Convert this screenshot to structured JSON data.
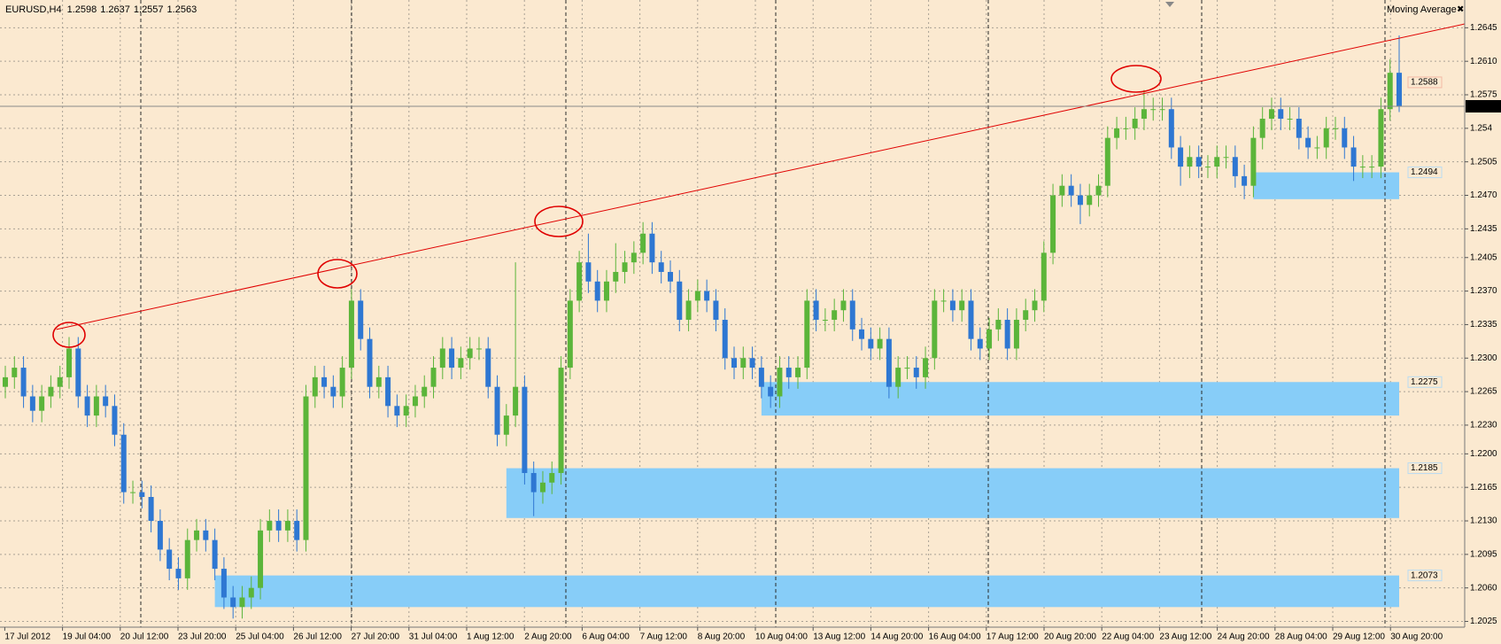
{
  "chart_data": {
    "type": "candlestick",
    "title": "EURUSD,H4",
    "indicator": "Moving Average",
    "x_labels": [
      "17 Jul 2012",
      "19 Jul 04:00",
      "20 Jul 12:00",
      "23 Jul 20:00",
      "25 Jul 04:00",
      "26 Jul 12:00",
      "27 Jul 20:00",
      "31 Jul 04:00",
      "1 Aug 12:00",
      "2 Aug 20:00",
      "6 Aug 04:00",
      "7 Aug 12:00",
      "8 Aug 20:00",
      "10 Aug 04:00",
      "13 Aug 12:00",
      "14 Aug 20:00",
      "16 Aug 04:00",
      "17 Aug 12:00",
      "20 Aug 20:00",
      "22 Aug 04:00",
      "23 Aug 12:00",
      "24 Aug 20:00",
      "28 Aug 04:00",
      "29 Aug 12:00",
      "30 Aug 20:00"
    ],
    "open": [
      1.227,
      1.228,
      1.229,
      1.226,
      1.2245,
      1.226,
      1.227,
      1.228,
      1.231,
      1.226,
      1.224,
      1.226,
      1.225,
      1.222,
      1.216,
      1.216,
      1.2155,
      1.213,
      1.21,
      1.208,
      1.207,
      1.211,
      1.212,
      1.211,
      1.208,
      1.205,
      1.204,
      1.205,
      1.206,
      1.212,
      1.213,
      1.212,
      1.213,
      1.211,
      1.226,
      1.228,
      1.227,
      1.226,
      1.229,
      1.236,
      1.232,
      1.227,
      1.228,
      1.225,
      1.224,
      1.225,
      1.226,
      1.227,
      1.229,
      1.231,
      1.229,
      1.23,
      1.231,
      1.231,
      1.227,
      1.222,
      1.224,
      1.227,
      1.218,
      1.216,
      1.217,
      1.218,
      1.229,
      1.236,
      1.24,
      1.238,
      1.236,
      1.238,
      1.239,
      1.24,
      1.241,
      1.243,
      1.24,
      1.239,
      1.238,
      1.234,
      1.236,
      1.237,
      1.236,
      1.234,
      1.23,
      1.229,
      1.23,
      1.229,
      1.227,
      1.226,
      1.229,
      1.228,
      1.229,
      1.236,
      1.234,
      1.234,
      1.235,
      1.236,
      1.233,
      1.232,
      1.231,
      1.232,
      1.227,
      1.229,
      1.229,
      1.228,
      1.23,
      1.236,
      1.236,
      1.235,
      1.236,
      1.232,
      1.231,
      1.233,
      1.234,
      1.231,
      1.234,
      1.235,
      1.236,
      1.241,
      1.247,
      1.248,
      1.247,
      1.246,
      1.247,
      1.248,
      1.253,
      1.254,
      1.254,
      1.255,
      1.256,
      1.256,
      1.256,
      1.252,
      1.25,
      1.251,
      1.25,
      1.25,
      1.251,
      1.251,
      1.249,
      1.248,
      1.253,
      1.255,
      1.256,
      1.255,
      1.255,
      1.253,
      1.252,
      1.252,
      1.254,
      1.254,
      1.252,
      1.25,
      1.25,
      1.25,
      1.256,
      1.2598
    ],
    "high": [
      1.2292,
      1.2302,
      1.2302,
      1.2272,
      1.2272,
      1.2282,
      1.2292,
      1.2322,
      1.2322,
      1.2272,
      1.2272,
      1.2272,
      1.2262,
      1.2232,
      1.2172,
      1.2172,
      1.2167,
      1.2142,
      1.2112,
      1.2092,
      1.2122,
      1.2132,
      1.2132,
      1.2122,
      1.2092,
      1.2062,
      1.2062,
      1.2072,
      1.2132,
      1.2142,
      1.2142,
      1.2142,
      1.2142,
      1.2272,
      1.2292,
      1.2292,
      1.2282,
      1.2302,
      1.2372,
      1.2372,
      1.2332,
      1.2292,
      1.2292,
      1.2262,
      1.2262,
      1.2272,
      1.2282,
      1.2302,
      1.2322,
      1.2322,
      1.2312,
      1.2322,
      1.2322,
      1.2322,
      1.2282,
      1.2252,
      1.24,
      1.2282,
      1.2192,
      1.2182,
      1.2192,
      1.2302,
      1.2372,
      1.2412,
      1.243,
      1.2392,
      1.2392,
      1.242,
      1.2412,
      1.2422,
      1.2442,
      1.2442,
      1.2412,
      1.2402,
      1.2392,
      1.2372,
      1.2382,
      1.2382,
      1.2372,
      1.2352,
      1.2312,
      1.2312,
      1.2312,
      1.2302,
      1.2282,
      1.2302,
      1.2302,
      1.2302,
      1.2372,
      1.2372,
      1.2352,
      1.2362,
      1.2372,
      1.2372,
      1.2342,
      1.2332,
      1.2332,
      1.2332,
      1.2302,
      1.2302,
      1.2302,
      1.2312,
      1.2372,
      1.2372,
      1.2372,
      1.2372,
      1.2372,
      1.2332,
      1.2342,
      1.2352,
      1.2352,
      1.2352,
      1.2362,
      1.2372,
      1.2422,
      1.2482,
      1.2492,
      1.2492,
      1.2482,
      1.2482,
      1.2492,
      1.2542,
      1.2552,
      1.2552,
      1.2562,
      1.258,
      1.2572,
      1.2572,
      1.2572,
      1.2532,
      1.2522,
      1.2522,
      1.2512,
      1.2522,
      1.2522,
      1.2522,
      1.2502,
      1.2542,
      1.2562,
      1.2572,
      1.2572,
      1.2562,
      1.2562,
      1.2542,
      1.2532,
      1.2552,
      1.2552,
      1.2552,
      1.2532,
      1.2512,
      1.2512,
      1.2572,
      1.2612,
      1.2637
    ],
    "low": [
      1.2258,
      1.2268,
      1.2248,
      1.2233,
      1.2233,
      1.2248,
      1.2258,
      1.2268,
      1.2248,
      1.2228,
      1.2228,
      1.2238,
      1.2208,
      1.2148,
      1.2148,
      1.2143,
      1.2118,
      1.2088,
      1.2068,
      1.2058,
      1.2058,
      1.2098,
      1.2098,
      1.2068,
      1.2038,
      1.2028,
      1.2028,
      1.2038,
      1.2048,
      1.2108,
      1.2108,
      1.2108,
      1.2098,
      1.2098,
      1.2248,
      1.2258,
      1.2248,
      1.2248,
      1.2278,
      1.2308,
      1.2258,
      1.2258,
      1.2238,
      1.2228,
      1.2228,
      1.2238,
      1.2248,
      1.2258,
      1.2278,
      1.2278,
      1.2278,
      1.2288,
      1.2298,
      1.2258,
      1.2208,
      1.2208,
      1.2228,
      1.2168,
      1.2135,
      1.2148,
      1.2158,
      1.2168,
      1.2278,
      1.2348,
      1.2368,
      1.2348,
      1.2348,
      1.2368,
      1.2378,
      1.2388,
      1.2398,
      1.2388,
      1.2378,
      1.2368,
      1.2328,
      1.2328,
      1.2348,
      1.2348,
      1.2328,
      1.2288,
      1.2278,
      1.2278,
      1.2278,
      1.2258,
      1.2248,
      1.2248,
      1.2268,
      1.2268,
      1.2278,
      1.2328,
      1.2328,
      1.2328,
      1.2338,
      1.2318,
      1.2308,
      1.2298,
      1.2298,
      1.2258,
      1.2258,
      1.2278,
      1.2268,
      1.2268,
      1.2288,
      1.2348,
      1.2338,
      1.2338,
      1.2308,
      1.2298,
      1.2298,
      1.2318,
      1.2298,
      1.2298,
      1.2328,
      1.2338,
      1.2348,
      1.2398,
      1.2458,
      1.2458,
      1.244,
      1.2448,
      1.2458,
      1.2468,
      1.2518,
      1.2528,
      1.2528,
      1.2538,
      1.2548,
      1.2548,
      1.2508,
      1.248,
      1.2488,
      1.2488,
      1.2488,
      1.2488,
      1.2498,
      1.2478,
      1.2466,
      1.2468,
      1.2518,
      1.2538,
      1.2538,
      1.2538,
      1.2518,
      1.2508,
      1.2508,
      1.2508,
      1.2528,
      1.2508,
      1.2485,
      1.2488,
      1.2488,
      1.2488,
      1.2548,
      1.2557
    ],
    "close": [
      1.228,
      1.229,
      1.226,
      1.2245,
      1.226,
      1.227,
      1.228,
      1.231,
      1.226,
      1.224,
      1.226,
      1.225,
      1.222,
      1.216,
      1.216,
      1.2155,
      1.213,
      1.21,
      1.208,
      1.207,
      1.211,
      1.212,
      1.211,
      1.208,
      1.205,
      1.204,
      1.205,
      1.206,
      1.212,
      1.213,
      1.212,
      1.213,
      1.211,
      1.226,
      1.228,
      1.227,
      1.226,
      1.229,
      1.236,
      1.232,
      1.227,
      1.228,
      1.225,
      1.224,
      1.225,
      1.226,
      1.227,
      1.229,
      1.231,
      1.229,
      1.23,
      1.231,
      1.231,
      1.227,
      1.222,
      1.224,
      1.227,
      1.218,
      1.216,
      1.217,
      1.218,
      1.229,
      1.236,
      1.24,
      1.238,
      1.236,
      1.238,
      1.239,
      1.24,
      1.241,
      1.243,
      1.24,
      1.239,
      1.238,
      1.234,
      1.236,
      1.237,
      1.236,
      1.234,
      1.23,
      1.229,
      1.23,
      1.229,
      1.227,
      1.226,
      1.229,
      1.228,
      1.229,
      1.236,
      1.234,
      1.234,
      1.235,
      1.236,
      1.233,
      1.232,
      1.231,
      1.232,
      1.227,
      1.229,
      1.229,
      1.228,
      1.23,
      1.236,
      1.236,
      1.235,
      1.236,
      1.232,
      1.231,
      1.233,
      1.234,
      1.231,
      1.234,
      1.235,
      1.236,
      1.241,
      1.247,
      1.248,
      1.247,
      1.246,
      1.247,
      1.248,
      1.253,
      1.254,
      1.254,
      1.255,
      1.256,
      1.256,
      1.256,
      1.252,
      1.25,
      1.251,
      1.25,
      1.25,
      1.251,
      1.251,
      1.249,
      1.248,
      1.253,
      1.255,
      1.256,
      1.255,
      1.255,
      1.253,
      1.252,
      1.252,
      1.254,
      1.254,
      1.252,
      1.25,
      1.25,
      1.25,
      1.256,
      1.2598,
      1.2563
    ],
    "colors": {
      "up": "#5bb53a",
      "down": "#2e77d2",
      "zone": "#87cdf8",
      "trendline": "#e00000"
    },
    "ylim": [
      1.2019,
      1.2674
    ],
    "yticks": [
      1.2645,
      {
        "value": 1.261,
        "label": "1.2610"
      },
      1.2575,
      1.254,
      1.2505,
      {
        "value": 1.247,
        "label": "1.2470"
      },
      1.2435,
      1.2405,
      {
        "value": 1.237,
        "label": "1.2370"
      },
      1.2335,
      {
        "value": 1.23,
        "label": "1.2300"
      },
      1.2265,
      {
        "value": 1.223,
        "label": "1.2230"
      },
      {
        "value": 1.22,
        "label": "1.2200"
      },
      1.2165,
      {
        "value": 1.213,
        "label": "1.2130"
      },
      1.2095,
      {
        "value": 1.206,
        "label": "1.2060"
      },
      1.2025
    ],
    "grid": true,
    "zones": [
      {
        "start": 137,
        "top": 1.2494,
        "bottom": 1.2466
      },
      {
        "start": 83,
        "top": 1.2275,
        "bottom": 1.224
      },
      {
        "start": 55,
        "top": 1.2185,
        "bottom": 1.2133
      },
      {
        "start": 23,
        "top": 1.2073,
        "bottom": 1.204
      }
    ],
    "level": 1.2588,
    "trendline": {
      "x": [
        5.6,
        125.3
      ],
      "y": [
        1.233,
        1.2577
      ]
    }
  }
}
